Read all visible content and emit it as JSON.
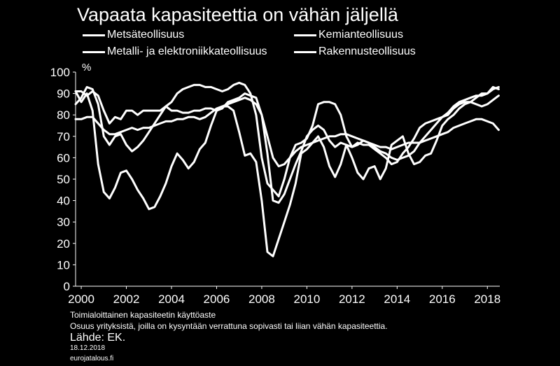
{
  "chart_data": {
    "type": "line",
    "title": "Vapaata kapasiteettia on vähän jäljellä",
    "ylabel": "%",
    "xlabel": "",
    "ylim": [
      0,
      100
    ],
    "xlim": [
      1999.75,
      2018.55
    ],
    "yticks": [
      0,
      10,
      20,
      30,
      40,
      50,
      60,
      70,
      80,
      90,
      100
    ],
    "xticks": [
      2000,
      2002,
      2004,
      2006,
      2008,
      2010,
      2012,
      2014,
      2016,
      2018
    ],
    "grid": false,
    "legend_position": "top",
    "series": [
      {
        "name": "Metsäteollisuus",
        "x": [
          1999.75,
          2000.0,
          2000.25,
          2000.5,
          2000.75,
          2001.0,
          2001.25,
          2001.5,
          2001.75,
          2002.0,
          2002.25,
          2002.5,
          2002.75,
          2003.0,
          2003.25,
          2003.5,
          2003.75,
          2004.0,
          2004.25,
          2004.5,
          2004.75,
          2005.0,
          2005.25,
          2005.5,
          2005.75,
          2006.0,
          2006.25,
          2006.5,
          2006.75,
          2007.0,
          2007.25,
          2007.5,
          2007.75,
          2008.0,
          2008.25,
          2008.5,
          2008.75,
          2009.0,
          2009.25,
          2009.5,
          2009.75,
          2010.0,
          2010.25,
          2010.5,
          2010.75,
          2011.0,
          2011.25,
          2011.5,
          2011.75,
          2012.0,
          2012.25,
          2012.5,
          2012.75,
          2013.0,
          2013.25,
          2013.5,
          2013.75,
          2014.0,
          2014.25,
          2014.5,
          2014.75,
          2015.0,
          2015.25,
          2015.5,
          2015.75,
          2016.0,
          2016.25,
          2016.5,
          2016.75,
          2017.0,
          2017.25,
          2017.5,
          2017.75,
          2018.0,
          2018.25,
          2018.5
        ],
        "values": [
          78,
          78,
          79,
          79,
          76,
          73,
          71,
          71,
          72,
          73,
          74,
          73,
          74,
          74,
          75,
          76,
          77,
          77,
          78,
          78,
          79,
          79,
          78,
          79,
          81,
          83,
          84,
          85,
          86,
          87,
          88,
          87,
          85,
          80,
          70,
          60,
          56,
          57,
          60,
          63,
          65,
          66,
          67,
          68,
          69,
          70,
          70,
          71,
          71,
          70,
          69,
          68,
          67,
          66,
          65,
          65,
          64,
          65,
          66,
          67,
          67,
          67,
          68,
          69,
          70,
          71,
          72,
          74,
          75,
          76,
          77,
          78,
          78,
          77,
          76,
          73
        ]
      },
      {
        "name": "Metalli- ja elektroniikkateollisuus",
        "x": [
          1999.75,
          2000.0,
          2000.25,
          2000.5,
          2000.75,
          2001.0,
          2001.25,
          2001.5,
          2001.75,
          2002.0,
          2002.25,
          2002.5,
          2002.75,
          2003.0,
          2003.25,
          2003.5,
          2003.75,
          2004.0,
          2004.25,
          2004.5,
          2004.75,
          2005.0,
          2005.25,
          2005.5,
          2005.75,
          2006.0,
          2006.25,
          2006.5,
          2006.75,
          2007.0,
          2007.25,
          2007.5,
          2007.75,
          2008.0,
          2008.25,
          2008.5,
          2008.75,
          2009.0,
          2009.25,
          2009.5,
          2009.75,
          2010.0,
          2010.25,
          2010.5,
          2010.75,
          2011.0,
          2011.25,
          2011.5,
          2011.75,
          2012.0,
          2012.25,
          2012.5,
          2012.75,
          2013.0,
          2013.25,
          2013.5,
          2013.75,
          2014.0,
          2014.25,
          2014.5,
          2014.75,
          2015.0,
          2015.25,
          2015.5,
          2015.75,
          2016.0,
          2016.25,
          2016.5,
          2016.75,
          2017.0,
          2017.25,
          2017.5,
          2017.75,
          2018.0,
          2018.25,
          2018.5
        ],
        "values": [
          91,
          91,
          89,
          91,
          89,
          82,
          76,
          79,
          78,
          82,
          82,
          80,
          82,
          82,
          82,
          82,
          84,
          82,
          82,
          81,
          81,
          82,
          82,
          83,
          83,
          82,
          83,
          86,
          87,
          88,
          90,
          89,
          88,
          80,
          62,
          40,
          39,
          43,
          50,
          57,
          63,
          70,
          73,
          75,
          73,
          68,
          65,
          67,
          66,
          65,
          66,
          68,
          67,
          65,
          63,
          62,
          60,
          59,
          60,
          61,
          63,
          67,
          70,
          73,
          76,
          79,
          81,
          84,
          86,
          87,
          88,
          89,
          89,
          90,
          92,
          93
        ]
      },
      {
        "name": "Kemianteollisuus",
        "x": [
          1999.75,
          2000.0,
          2000.25,
          2000.5,
          2000.75,
          2001.0,
          2001.25,
          2001.5,
          2001.75,
          2002.0,
          2002.25,
          2002.5,
          2002.75,
          2003.0,
          2003.25,
          2003.5,
          2003.75,
          2004.0,
          2004.25,
          2004.5,
          2004.75,
          2005.0,
          2005.25,
          2005.5,
          2005.75,
          2006.0,
          2006.25,
          2006.5,
          2006.75,
          2007.0,
          2007.25,
          2007.5,
          2007.75,
          2008.0,
          2008.25,
          2008.5,
          2008.75,
          2009.0,
          2009.25,
          2009.5,
          2009.75,
          2010.0,
          2010.25,
          2010.5,
          2010.75,
          2011.0,
          2011.25,
          2011.5,
          2011.75,
          2012.0,
          2012.25,
          2012.5,
          2012.75,
          2013.0,
          2013.25,
          2013.5,
          2013.75,
          2014.0,
          2014.25,
          2014.5,
          2014.75,
          2015.0,
          2015.25,
          2015.5,
          2015.75,
          2016.0,
          2016.25,
          2016.5,
          2016.75,
          2017.0,
          2017.25,
          2017.5,
          2017.75,
          2018.0,
          2018.25,
          2018.5
        ],
        "values": [
          85,
          88,
          93,
          92,
          85,
          70,
          66,
          70,
          71,
          66,
          63,
          65,
          68,
          72,
          76,
          80,
          84,
          86,
          90,
          92,
          93,
          94,
          94,
          93,
          93,
          92,
          91,
          92,
          94,
          95,
          94,
          90,
          80,
          60,
          48,
          45,
          42,
          50,
          60,
          66,
          67,
          69,
          75,
          85,
          86,
          86,
          85,
          80,
          70,
          65,
          67,
          66,
          66,
          64,
          62,
          60,
          57,
          58,
          62,
          65,
          69,
          74,
          76,
          77,
          78,
          79,
          80,
          83,
          85,
          86,
          86,
          85,
          84,
          85,
          87,
          89
        ]
      },
      {
        "name": "Rakennusteollisuus",
        "x": [
          1999.75,
          2000.0,
          2000.25,
          2000.5,
          2000.75,
          2001.0,
          2001.25,
          2001.5,
          2001.75,
          2002.0,
          2002.25,
          2002.5,
          2002.75,
          2003.0,
          2003.25,
          2003.5,
          2003.75,
          2004.0,
          2004.25,
          2004.5,
          2004.75,
          2005.0,
          2005.25,
          2005.5,
          2005.75,
          2006.0,
          2006.25,
          2006.5,
          2006.75,
          2007.0,
          2007.25,
          2007.5,
          2007.75,
          2008.0,
          2008.25,
          2008.5,
          2008.75,
          2009.0,
          2009.25,
          2009.5,
          2009.75,
          2010.0,
          2010.25,
          2010.5,
          2010.75,
          2011.0,
          2011.25,
          2011.5,
          2011.75,
          2012.0,
          2012.25,
          2012.5,
          2012.75,
          2013.0,
          2013.25,
          2013.5,
          2013.75,
          2014.0,
          2014.25,
          2014.5,
          2014.75,
          2015.0,
          2015.25,
          2015.5,
          2015.75,
          2016.0,
          2016.25,
          2016.5,
          2016.75,
          2017.0,
          2017.25,
          2017.5,
          2017.75,
          2018.0,
          2018.25,
          2018.5
        ],
        "values": [
          91,
          86,
          90,
          82,
          57,
          44,
          41,
          46,
          53,
          54,
          50,
          45,
          41,
          36,
          37,
          42,
          48,
          56,
          62,
          59,
          55,
          58,
          64,
          67,
          75,
          82,
          84,
          84,
          82,
          72,
          61,
          62,
          58,
          40,
          16,
          14,
          22,
          30,
          38,
          48,
          62,
          64,
          67,
          70,
          65,
          56,
          51,
          57,
          66,
          60,
          53,
          50,
          55,
          56,
          50,
          55,
          66,
          68,
          70,
          62,
          57,
          58,
          61,
          62,
          68,
          75,
          78,
          80,
          83,
          85,
          86,
          88,
          90,
          90,
          93,
          92
        ]
      }
    ]
  },
  "notes": {
    "line1": "Toimialoittainen  kapasiteetin käyttöaste",
    "line2": "Osuus yrityksistä, joilla on kysyntään verrattuna sopivasti tai liian vähän kapasiteettia.",
    "source": "Lähde: EK.",
    "date": "18.12.2018",
    "site": "eurojatalous.fi"
  },
  "colors": {
    "background": "#000000",
    "line": "#ffffff",
    "text": "#ffffff"
  }
}
